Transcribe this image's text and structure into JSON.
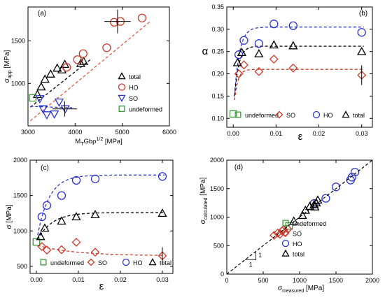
{
  "chart_data": [
    {
      "type": "scatter",
      "panel_label": "(a)",
      "xlabel": "MᵀGbρ¹ᐟ² [MPa]",
      "xlabel_parts": [
        "M",
        "T",
        "Gbρ",
        "1/2",
        "[MPa]"
      ],
      "ylabel_parts": [
        "σ",
        "app",
        "[MPa]"
      ],
      "xlim": [
        3000,
        6000
      ],
      "ylim": [
        500,
        1900
      ],
      "xticks": [
        3000,
        4000,
        5000,
        6000
      ],
      "yticks": [
        1000,
        1500
      ],
      "legend_position": "right-bottom",
      "series": [
        {
          "name": "total",
          "marker": "triangle-up",
          "color": "#000000",
          "x": [
            3200,
            3280,
            3360,
            3480,
            3620,
            3720,
            3780,
            4120,
            4180
          ],
          "y": [
            870,
            960,
            1050,
            1110,
            1180,
            1160,
            1225,
            1235,
            1260
          ]
        },
        {
          "name": "HO",
          "marker": "circle",
          "color": "#cc3b2a",
          "x": [
            3820,
            4050,
            4170,
            4670,
            4830,
            4960,
            5420
          ],
          "y": [
            1190,
            1280,
            1350,
            1420,
            1720,
            1730,
            1770
          ]
        },
        {
          "name": "SO",
          "marker": "triangle-down",
          "color": "#2b35c8",
          "x": [
            3250,
            3320,
            3400,
            3560,
            3660,
            3790
          ],
          "y": [
            820,
            700,
            630,
            640,
            780,
            700
          ]
        },
        {
          "name": "undeformed",
          "marker": "square",
          "color": "#3a9a3a",
          "x": [
            3100
          ],
          "y": [
            830
          ]
        }
      ]
    },
    {
      "type": "scatter",
      "panel_label": "(b)",
      "ylabel": "α",
      "xlabel": "ε",
      "xlim": [
        -0.0015,
        0.0325
      ],
      "ylim": [
        0.08,
        0.35
      ],
      "xticks": [
        0.0,
        0.01,
        0.02,
        0.03
      ],
      "yticks": [
        0.1,
        0.15,
        0.2,
        0.25,
        0.3,
        0.35
      ],
      "legend_position": "bottom",
      "series": [
        {
          "name": "undeformed",
          "marker": "square",
          "color": "#3a9a3a",
          "x": [
            0.0
          ],
          "y": [
            0.11
          ]
        },
        {
          "name": "SO",
          "marker": "diamond",
          "color": "#cc3b2a",
          "x": [
            0.0013,
            0.0025,
            0.006,
            0.0095,
            0.014,
            0.03
          ],
          "y": [
            0.2,
            0.22,
            0.205,
            0.233,
            0.213,
            0.197
          ]
        },
        {
          "name": "HO",
          "marker": "circle",
          "color": "#2b35c8",
          "x": [
            0.0013,
            0.0025,
            0.006,
            0.0095,
            0.014,
            0.03
          ],
          "y": [
            0.243,
            0.275,
            0.268,
            0.312,
            0.308,
            0.293
          ]
        },
        {
          "name": "total",
          "marker": "triangle-up",
          "color": "#000000",
          "x": [
            0.001,
            0.002,
            0.006,
            0.0095,
            0.014,
            0.03
          ],
          "y": [
            0.225,
            0.248,
            0.245,
            0.265,
            0.263,
            0.25
          ]
        }
      ]
    },
    {
      "type": "scatter",
      "panel_label": "(c)",
      "ylabel": "σ [MPa]",
      "xlabel": "ε",
      "xlim": [
        -0.0015,
        0.0325
      ],
      "ylim": [
        400,
        2000
      ],
      "xticks": [
        0.0,
        0.01,
        0.02,
        0.03
      ],
      "yticks": [
        500,
        1000,
        1500,
        2000
      ],
      "legend_position": "bottom",
      "series": [
        {
          "name": "undeformed",
          "marker": "square",
          "color": "#3a9a3a",
          "x": [
            0.0
          ],
          "y": [
            845
          ]
        },
        {
          "name": "SO",
          "marker": "diamond",
          "color": "#cc3b2a",
          "x": [
            0.0013,
            0.0025,
            0.006,
            0.0095,
            0.014,
            0.03
          ],
          "y": [
            780,
            730,
            735,
            840,
            700,
            650
          ]
        },
        {
          "name": "HO",
          "marker": "circle",
          "color": "#2b35c8",
          "x": [
            0.0013,
            0.0025,
            0.006,
            0.0095,
            0.014,
            0.03
          ],
          "y": [
            1200,
            1360,
            1500,
            1715,
            1735,
            1770
          ]
        },
        {
          "name": "total",
          "marker": "triangle-up",
          "color": "#000000",
          "x": [
            0.001,
            0.002,
            0.006,
            0.0095,
            0.014,
            0.03
          ],
          "y": [
            920,
            1040,
            1140,
            1200,
            1230,
            1250
          ]
        }
      ]
    },
    {
      "type": "scatter",
      "panel_label": "(d)",
      "xlabel_parts": [
        "σ",
        "measured",
        "[MPa]"
      ],
      "ylabel_parts": [
        "σ",
        "calculated",
        "[MPa]"
      ],
      "xlim": [
        0,
        2000
      ],
      "ylim": [
        0,
        2000
      ],
      "xticks": [
        0,
        500,
        1000,
        1500,
        2000
      ],
      "yticks": [
        0,
        500,
        1000,
        1500,
        2000
      ],
      "slope_labels": [
        "1",
        "1"
      ],
      "legend_position": "right-bottom",
      "series": [
        {
          "name": "undeformed",
          "marker": "square",
          "color": "#3a9a3a",
          "x": [
            855
          ],
          "y": [
            845
          ]
        },
        {
          "name": "SO",
          "marker": "diamond",
          "color": "#cc3b2a",
          "x": [
            650,
            700,
            730,
            760,
            780,
            800,
            840
          ],
          "y": [
            680,
            720,
            700,
            760,
            780,
            730,
            790
          ]
        },
        {
          "name": "HO",
          "marker": "circle",
          "color": "#2b35c8",
          "x": [
            1200,
            1360,
            1500,
            1700,
            1720,
            1760
          ],
          "y": [
            1240,
            1330,
            1530,
            1650,
            1700,
            1790
          ]
        },
        {
          "name": "total",
          "marker": "triangle-up",
          "color": "#000000",
          "x": [
            920,
            1040,
            1080,
            1140,
            1200,
            1210,
            1230,
            1250
          ],
          "y": [
            930,
            1030,
            1120,
            1190,
            1220,
            1180,
            1250,
            1300
          ]
        }
      ]
    }
  ]
}
